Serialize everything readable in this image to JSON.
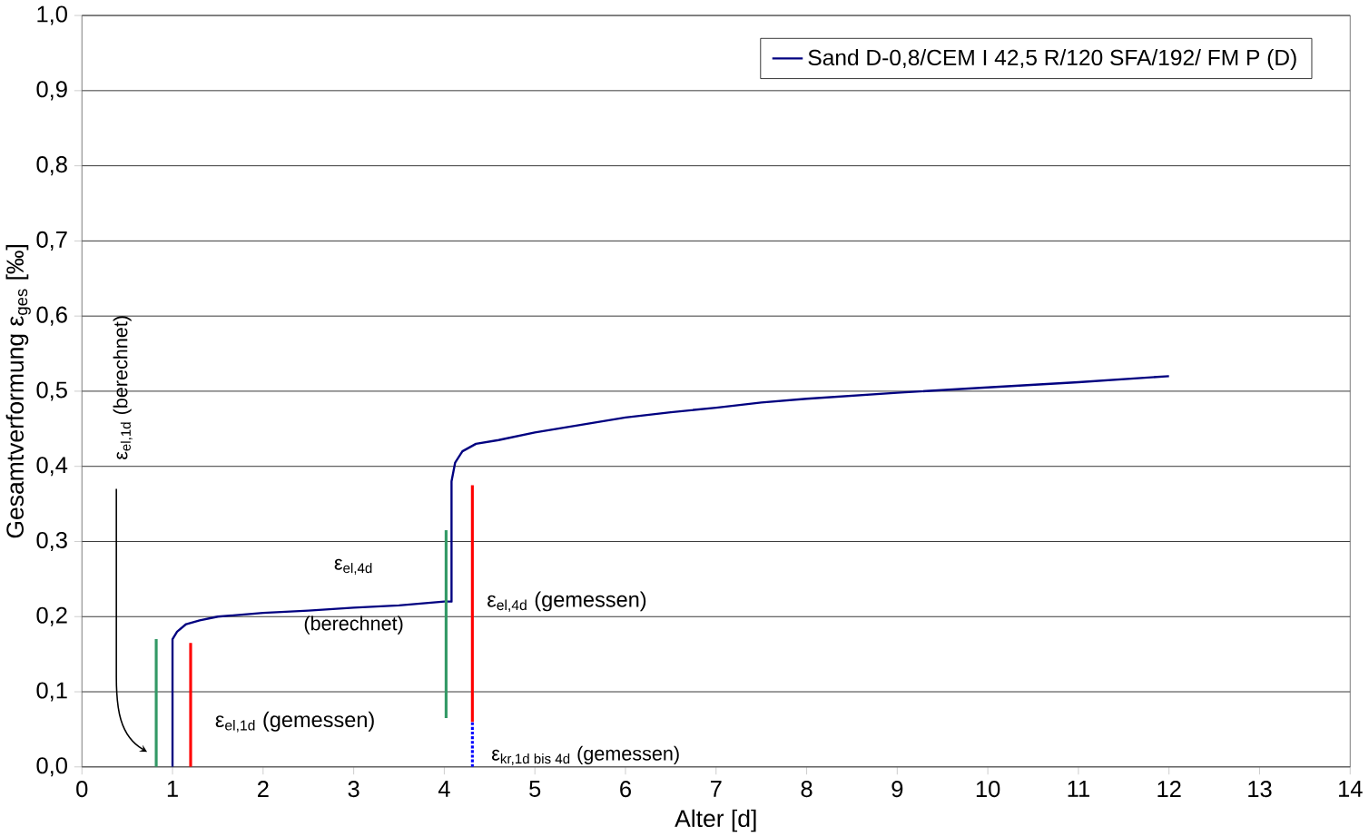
{
  "chart_data": {
    "type": "line",
    "xlabel": "Alter [d]",
    "ylabel": "Gesamtverformung  ε$_{ges}$ [‰]",
    "xlim": [
      0,
      14
    ],
    "ylim": [
      0,
      1
    ],
    "xticks": [
      0,
      1,
      2,
      3,
      4,
      5,
      6,
      7,
      8,
      9,
      10,
      11,
      12,
      13,
      14
    ],
    "yticks": [
      {
        "value": 0,
        "label": "0,0"
      },
      {
        "value": 0.1,
        "label": "0,1"
      },
      {
        "value": 0.2,
        "label": "0,2"
      },
      {
        "value": 0.3,
        "label": "0,3"
      },
      {
        "value": 0.4,
        "label": "0,4"
      },
      {
        "value": 0.5,
        "label": "0,5"
      },
      {
        "value": 0.6,
        "label": "0,6"
      },
      {
        "value": 0.7,
        "label": "0,7"
      },
      {
        "value": 0.8,
        "label": "0,8"
      },
      {
        "value": 0.9,
        "label": "0,9"
      },
      {
        "value": 1,
        "label": "1,0"
      }
    ],
    "grid": "y",
    "legend": "top right",
    "marker": "none",
    "series": [
      {
        "name": "Sand D-0,8/CEM I 42,5 R/120 SFA/192/ FM P (D)",
        "color": "#000080",
        "x": [
          1.0,
          1.0,
          1.05,
          1.15,
          1.3,
          1.5,
          1.7,
          2.0,
          2.5,
          3.0,
          3.5,
          4.0,
          4.08,
          4.08,
          4.12,
          4.2,
          4.35,
          4.6,
          5.0,
          5.5,
          6.0,
          6.5,
          7.0,
          7.5,
          8.0,
          9.0,
          10.0,
          11.0,
          12.0
        ],
        "values": [
          0.0,
          0.17,
          0.18,
          0.19,
          0.195,
          0.2,
          0.202,
          0.205,
          0.208,
          0.212,
          0.215,
          0.22,
          0.22,
          0.38,
          0.405,
          0.42,
          0.43,
          0.435,
          0.445,
          0.455,
          0.465,
          0.472,
          0.478,
          0.485,
          0.49,
          0.498,
          0.505,
          0.512,
          0.52
        ]
      },
      {
        "color": "#339966",
        "x": [
          0.82,
          0.82
        ],
        "values": [
          0.0,
          0.17
        ]
      },
      {
        "color": "#ff0000",
        "x": [
          1.2,
          1.2
        ],
        "values": [
          0.0,
          0.165
        ]
      },
      {
        "color": "#339966",
        "x": [
          4.02,
          4.02
        ],
        "values": [
          0.065,
          0.315
        ]
      },
      {
        "color": "#ff0000",
        "x": [
          4.31,
          4.31
        ],
        "values": [
          0.06,
          0.375
        ]
      },
      {
        "color": "#0000ff",
        "line_style": "dotted",
        "x": [
          4.31,
          4.31
        ],
        "values": [
          0.0,
          0.06
        ]
      }
    ],
    "annotations": [
      "ε$_{el,1d}$ (berechnet)",
      "ε$_{el,4d}$ (berechnet)",
      "ε$_{el,4d}$ (gemessen)",
      "ε$_{el,1d}$ (gemessen)",
      "\\text{ε}_{\\text{kr,1d bis 4d}}\\text{ (gemessen)}"
    ]
  }
}
